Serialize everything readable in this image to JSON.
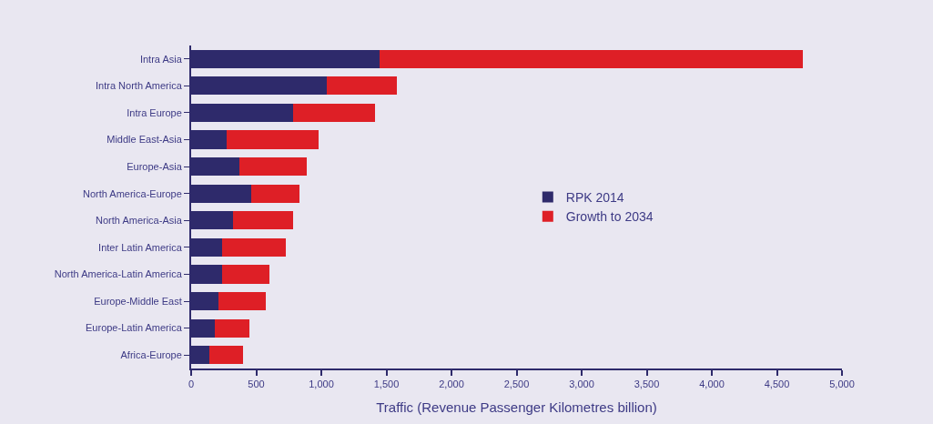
{
  "chart_data": {
    "type": "bar",
    "orientation": "horizontal",
    "stacked": true,
    "xlabel": "Traffic (Revenue Passenger Kilometres billion)",
    "categories": [
      "Intra Asia",
      "Intra North America",
      "Intra Europe",
      "Middle East-Asia",
      "Europe-Asia",
      "North America-Europe",
      "North America-Asia",
      "Inter Latin America",
      "North America-Latin America",
      "Europe-Middle East",
      "Europe-Latin America",
      "Africa-Europe"
    ],
    "series": [
      {
        "name": "RPK 2014",
        "color": "#2e2a6b",
        "values": [
          1450,
          1040,
          780,
          270,
          370,
          460,
          320,
          240,
          240,
          210,
          180,
          140
        ]
      },
      {
        "name": "Growth to 2034",
        "color": "#de1f26",
        "values": [
          3250,
          540,
          630,
          710,
          520,
          370,
          460,
          490,
          360,
          360,
          270,
          260
        ]
      }
    ],
    "xlim": [
      0,
      5000
    ],
    "xticks": [
      0,
      500,
      {
        "value": 1000,
        "label": "1,000"
      },
      {
        "value": 1500,
        "label": "1,500"
      },
      {
        "value": 2000,
        "label": "2,000"
      },
      {
        "value": 2500,
        "label": "2,500"
      },
      {
        "value": 3000,
        "label": "3,000"
      },
      {
        "value": 3500,
        "label": "3,500"
      },
      {
        "value": 4000,
        "label": "4,000"
      },
      {
        "value": 4500,
        "label": "4,500"
      },
      {
        "value": 5000,
        "label": "5,000"
      }
    ],
    "grid": false,
    "legend": "center"
  }
}
